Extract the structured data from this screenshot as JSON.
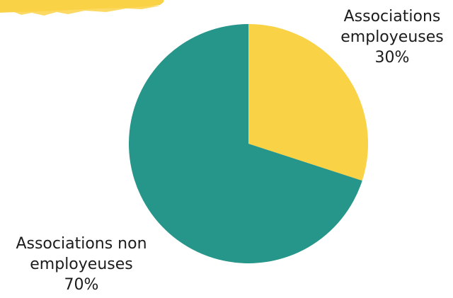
{
  "chart_data": {
    "type": "pie",
    "categories": [
      "Associations employeuses",
      "Associations non employeuses"
    ],
    "values": [
      30,
      70
    ],
    "unit": "%",
    "labels": [
      {
        "lines": [
          "Associations",
          "employeuses"
        ],
        "value": "30%"
      },
      {
        "lines": [
          "Associations non",
          "employeuses"
        ],
        "value": "70%"
      }
    ],
    "colors": [
      "#fad246",
      "#26968a"
    ],
    "start_angle_deg": 0,
    "direction": "clockwise",
    "decoration_color": "#fad246"
  }
}
